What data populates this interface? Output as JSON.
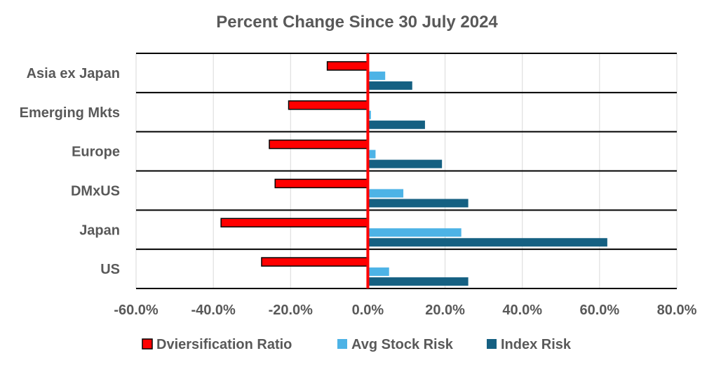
{
  "chart_data": {
    "type": "bar",
    "orientation": "horizontal",
    "title": "Percent Change Since 30 July 2024",
    "xlabel": "",
    "ylabel": "",
    "categories": [
      "Asia ex Japan",
      "Emerging Mkts",
      "Europe",
      "DMxUS",
      "Japan",
      "US"
    ],
    "xlim": [
      -0.6,
      0.8
    ],
    "x_ticks": [
      -0.6,
      -0.4,
      -0.2,
      0.0,
      0.2,
      0.4,
      0.6,
      0.8
    ],
    "x_tick_labels": [
      "-60.0%",
      "-40.0%",
      "-20.0%",
      "0.0%",
      "20.0%",
      "40.0%",
      "60.0%",
      "80.0%"
    ],
    "grid": "vertical",
    "legend_position": "bottom",
    "series": [
      {
        "name": "Dviersification Ratio",
        "color": "#ff0000",
        "outline": "#000000",
        "values": [
          -0.105,
          -0.205,
          -0.255,
          -0.24,
          -0.38,
          -0.275
        ]
      },
      {
        "name": "Avg Stock Risk",
        "color": "#4db3e6",
        "outline": "none",
        "values": [
          0.045,
          0.008,
          0.02,
          0.092,
          0.242,
          0.055
        ]
      },
      {
        "name": "Index Risk",
        "color": "#156082",
        "outline": "none",
        "values": [
          0.115,
          0.148,
          0.192,
          0.26,
          0.62,
          0.26
        ]
      }
    ],
    "zero_line_color": "#ff0000"
  }
}
